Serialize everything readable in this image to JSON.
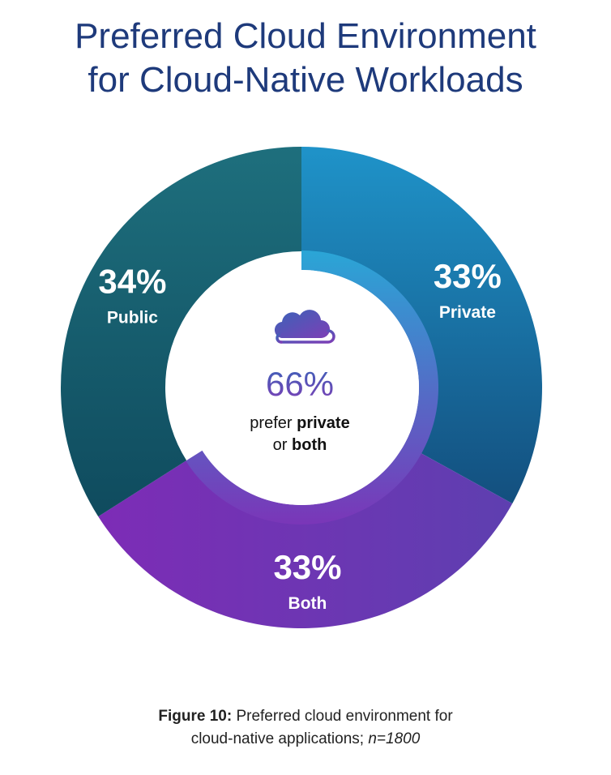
{
  "title_line1": "Preferred Cloud Environment",
  "title_line2": "for Cloud-Native Workloads",
  "center": {
    "percent": "66%",
    "line1_plain": "prefer ",
    "line1_bold": "private",
    "line2_plain": "or ",
    "line2_bold": "both",
    "icon": "cloud-icon"
  },
  "caption": {
    "label": "Figure 10:",
    "line1": "Preferred cloud environment for",
    "line2_plain": "cloud-native applications;",
    "line2_italic": "n=1800"
  },
  "colors": {
    "title": "#1e3a7b",
    "private_top": "#1f93c9",
    "private_bottom": "#134f7e",
    "both_left": "#7d2cb6",
    "both_right": "#5e3fb0",
    "public_top": "#1e6f7d",
    "public_bottom": "#0f4b5e",
    "inner_ring_top": "#2aa6d6",
    "inner_ring_bottom": "#7a36b8",
    "center_percent_top": "#3a63b8",
    "center_percent_bottom": "#7d3fb6"
  },
  "chart_data": {
    "type": "pie",
    "variant": "donut",
    "categories": [
      "Private",
      "Both",
      "Public"
    ],
    "values": [
      33,
      33,
      34
    ],
    "labels": [
      "33%",
      "33%",
      "34%"
    ],
    "unit": "%"
  }
}
